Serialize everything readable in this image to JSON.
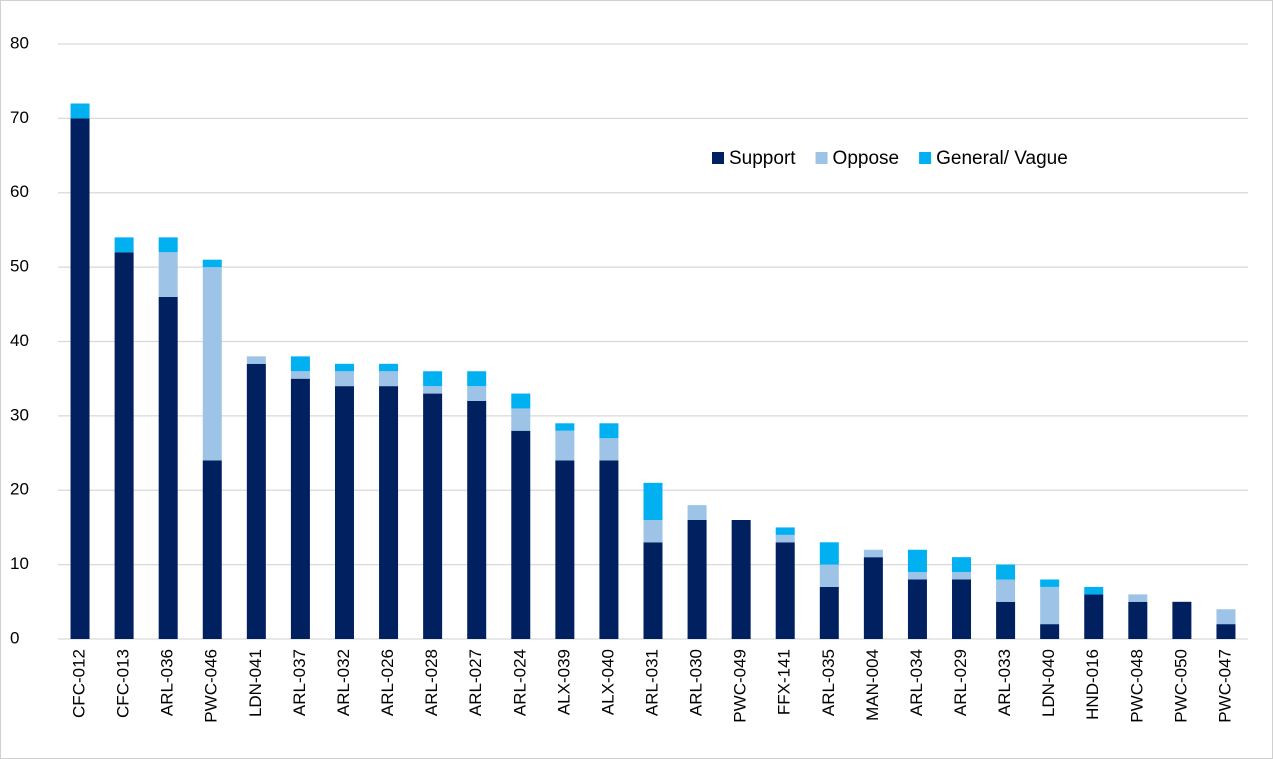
{
  "chart_data": {
    "type": "stacked_bar",
    "categories": [
      "CFC-012",
      "CFC-013",
      "ARL-036",
      "PWC-046",
      "LDN-041",
      "ARL-037",
      "ARL-032",
      "ARL-026",
      "ARL-028",
      "ARL-027",
      "ARL-024",
      "ALX-039",
      "ALX-040",
      "ARL-031",
      "ARL-030",
      "PWC-049",
      "FFX-141",
      "ARL-035",
      "MAN-004",
      "ARL-034",
      "ARL-029",
      "ARL-033",
      "LDN-040",
      "HND-016",
      "PWC-048",
      "PWC-050",
      "PWC-047"
    ],
    "series": [
      {
        "name": "Support",
        "color": "#002060",
        "values": [
          70,
          52,
          46,
          24,
          37,
          35,
          34,
          34,
          33,
          32,
          28,
          24,
          24,
          13,
          16,
          16,
          13,
          7,
          11,
          8,
          8,
          5,
          2,
          6,
          5,
          5,
          2
        ]
      },
      {
        "name": "Oppose",
        "color": "#9dc3e6",
        "values": [
          0,
          0,
          6,
          26,
          1,
          1,
          2,
          2,
          1,
          2,
          3,
          4,
          3,
          3,
          2,
          0,
          1,
          3,
          1,
          1,
          1,
          3,
          5,
          0,
          1,
          0,
          2
        ]
      },
      {
        "name": "General/ Vague",
        "color": "#00b0f0",
        "values": [
          2,
          2,
          2,
          1,
          0,
          2,
          1,
          1,
          2,
          2,
          2,
          1,
          2,
          5,
          0,
          0,
          1,
          3,
          0,
          3,
          2,
          2,
          1,
          1,
          0,
          0,
          0
        ]
      }
    ],
    "ylim": [
      0,
      80
    ],
    "yticks": [
      0,
      10,
      20,
      30,
      40,
      50,
      60,
      70,
      80
    ],
    "grid": true,
    "legend": "top-right"
  }
}
